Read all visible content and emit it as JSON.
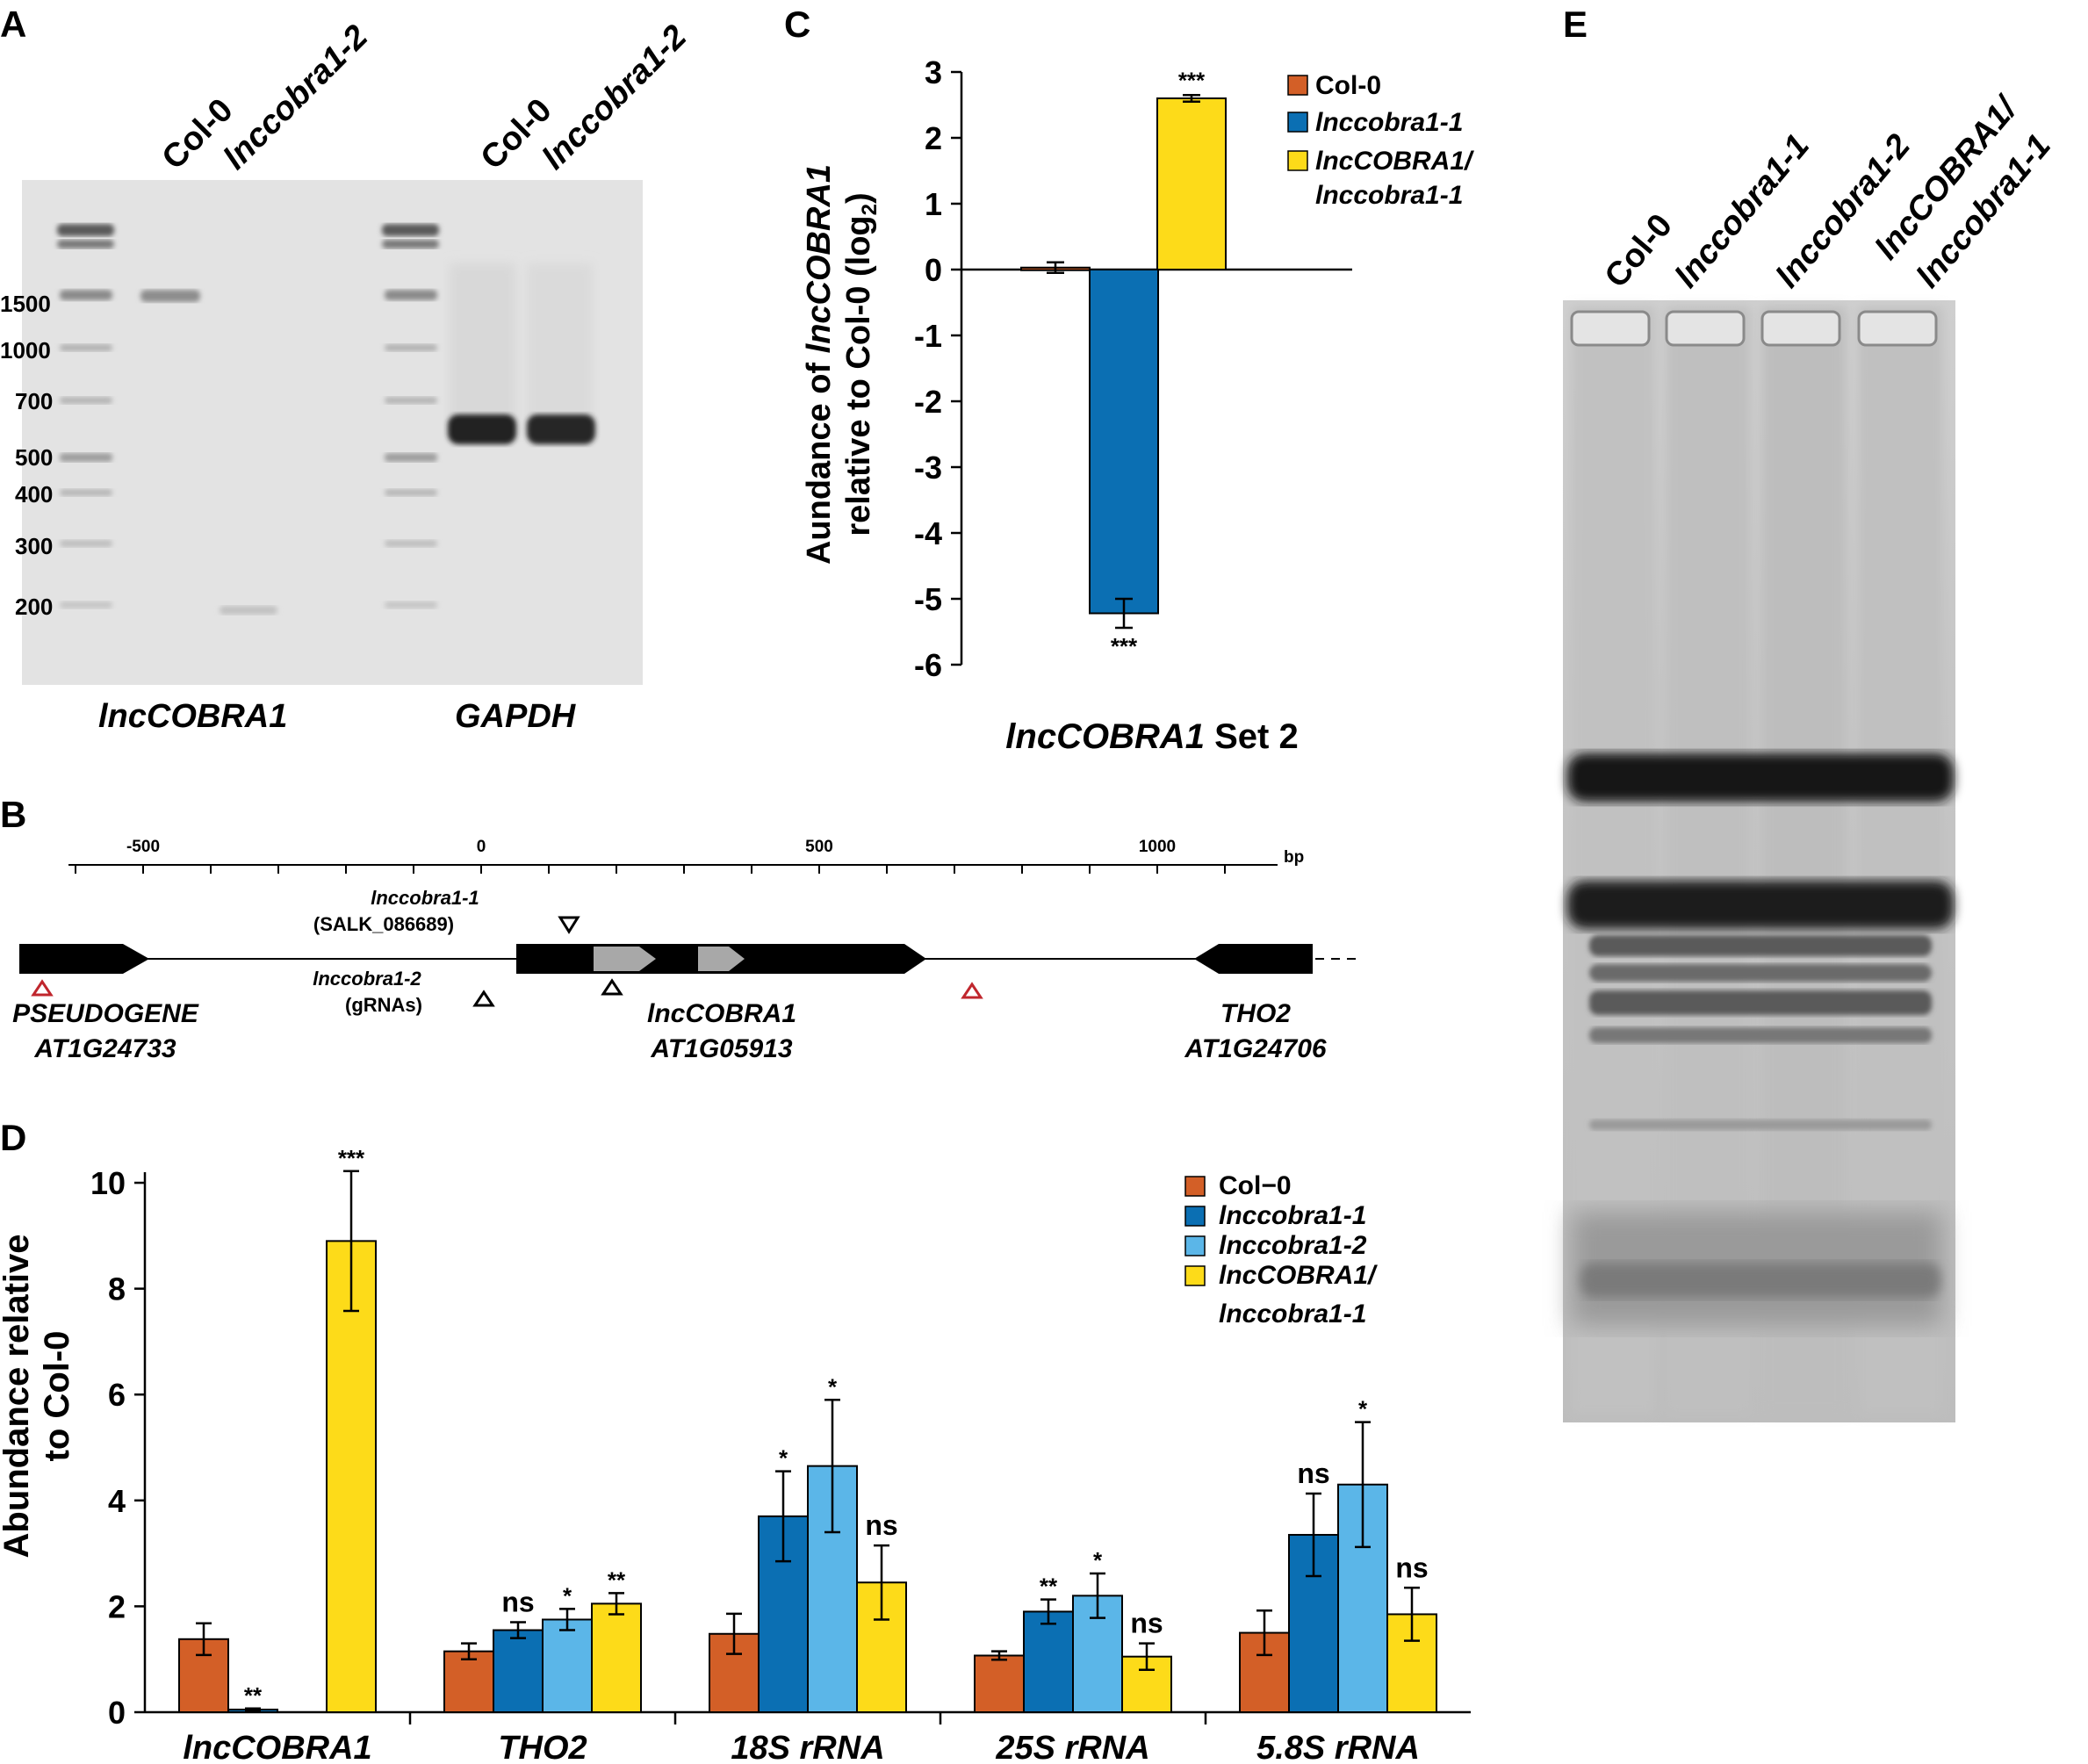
{
  "panels": {
    "a": {
      "letter": "A",
      "lanes": [
        "Col-0",
        "lnccobra1-2",
        "Col-0",
        "lnccobra1-2"
      ],
      "ladder": [
        "1500",
        "1000",
        "700",
        "500",
        "400",
        "300",
        "200"
      ],
      "gene_labels": [
        "lncCOBRA1",
        "GAPDH"
      ]
    },
    "b": {
      "letter": "B",
      "scale_ticks": [
        "-500",
        "0",
        "500",
        "1000"
      ],
      "scale_unit": "bp",
      "mut1_name": "lnccobra1-1",
      "mut1_sub": "(SALK_086689)",
      "mut2_name": "lnccobra1-2",
      "mut2_sub": "(gRNAs)",
      "gene_left_name": "PSEUDOGENE",
      "gene_left_id": "AT1G24733",
      "gene_mid_name": "lncCOBRA1",
      "gene_mid_id": "AT1G05913",
      "gene_right_name": "THO2",
      "gene_right_id": "AT1G24706"
    },
    "c": {
      "letter": "C",
      "ylabel_pre": "Aundance of ",
      "ylabel_ital": "lncCOBRA1",
      "ylabel2_pre": "relative to Col-0 (log",
      "ylabel2_sub": "2",
      "ylabel2_post": ")",
      "xlabel_ital": "lncCOBRA1",
      "xlabel_post": " Set 2"
    },
    "d": {
      "letter": "D",
      "ylabel_line1": "Abundance relative",
      "ylabel_line2": "to Col-0"
    },
    "e": {
      "letter": "E",
      "lanes": [
        "Col-0",
        "lnccobra1-1",
        "lnccobra1-2",
        "lncCOBRA1/",
        "lnccobra1-1"
      ]
    }
  },
  "chart_data": [
    {
      "panel": "C",
      "type": "bar",
      "categories": [
        "Col-0",
        "lnccobra1-1",
        "lncCOBRA1/lnccobra1-1"
      ],
      "values": [
        0.03,
        -5.22,
        2.6
      ],
      "errors": [
        0.08,
        0.22,
        0.05
      ],
      "significance": [
        "",
        "***",
        "***"
      ],
      "colors": [
        "#D35F27",
        "#0B6FB3",
        "#FDDB19"
      ],
      "legend": [
        "Col-0",
        "lnccobra1-1",
        "lncCOBRA1/",
        "lnccobra1-1"
      ],
      "yticks": [
        3,
        2,
        1,
        0,
        -1,
        -2,
        -3,
        -4,
        -5,
        -6
      ],
      "ylim": [
        -6,
        3
      ]
    },
    {
      "panel": "D",
      "type": "bar",
      "categories": [
        "lncCOBRA1",
        "THO2",
        "18S rRNA",
        "25S rRNA",
        "5.8S rRNA"
      ],
      "series": [
        {
          "name": "Col−0",
          "color": "#D35F27",
          "values": [
            1.38,
            1.15,
            1.48,
            1.07,
            1.5
          ],
          "errors": [
            0.3,
            0.15,
            0.38,
            0.08,
            0.42
          ],
          "significance": [
            "",
            "",
            "",
            "",
            ""
          ]
        },
        {
          "name": "lnccobra1-1",
          "color": "#0B6FB3",
          "values": [
            0.05,
            1.55,
            3.7,
            1.9,
            3.35
          ],
          "errors": [
            0.02,
            0.15,
            0.85,
            0.23,
            0.78
          ],
          "significance": [
            "**",
            "ns",
            "*",
            "**",
            "ns"
          ]
        },
        {
          "name": "lnccobra1-2",
          "color": "#5BB6E8",
          "values": [
            null,
            1.75,
            4.65,
            2.2,
            4.3
          ],
          "errors": [
            null,
            0.2,
            1.25,
            0.42,
            1.18
          ],
          "significance": [
            "",
            "*",
            "*",
            "*",
            "*"
          ]
        },
        {
          "name": "lncCOBRA1/lnccobra1-1",
          "color": "#FDDB19",
          "values": [
            8.9,
            2.05,
            2.45,
            1.05,
            1.85
          ],
          "errors": [
            1.32,
            0.2,
            0.7,
            0.25,
            0.5
          ],
          "significance": [
            "***",
            "**",
            "ns",
            "ns",
            "ns"
          ]
        }
      ],
      "legend": [
        "Col−0",
        "lnccobra1-1",
        "lnccobra1-2",
        "lncCOBRA1/",
        "lnccobra1-1"
      ],
      "yticks": [
        0,
        2,
        4,
        6,
        8,
        10
      ],
      "ylim": [
        0,
        10.2
      ]
    }
  ]
}
